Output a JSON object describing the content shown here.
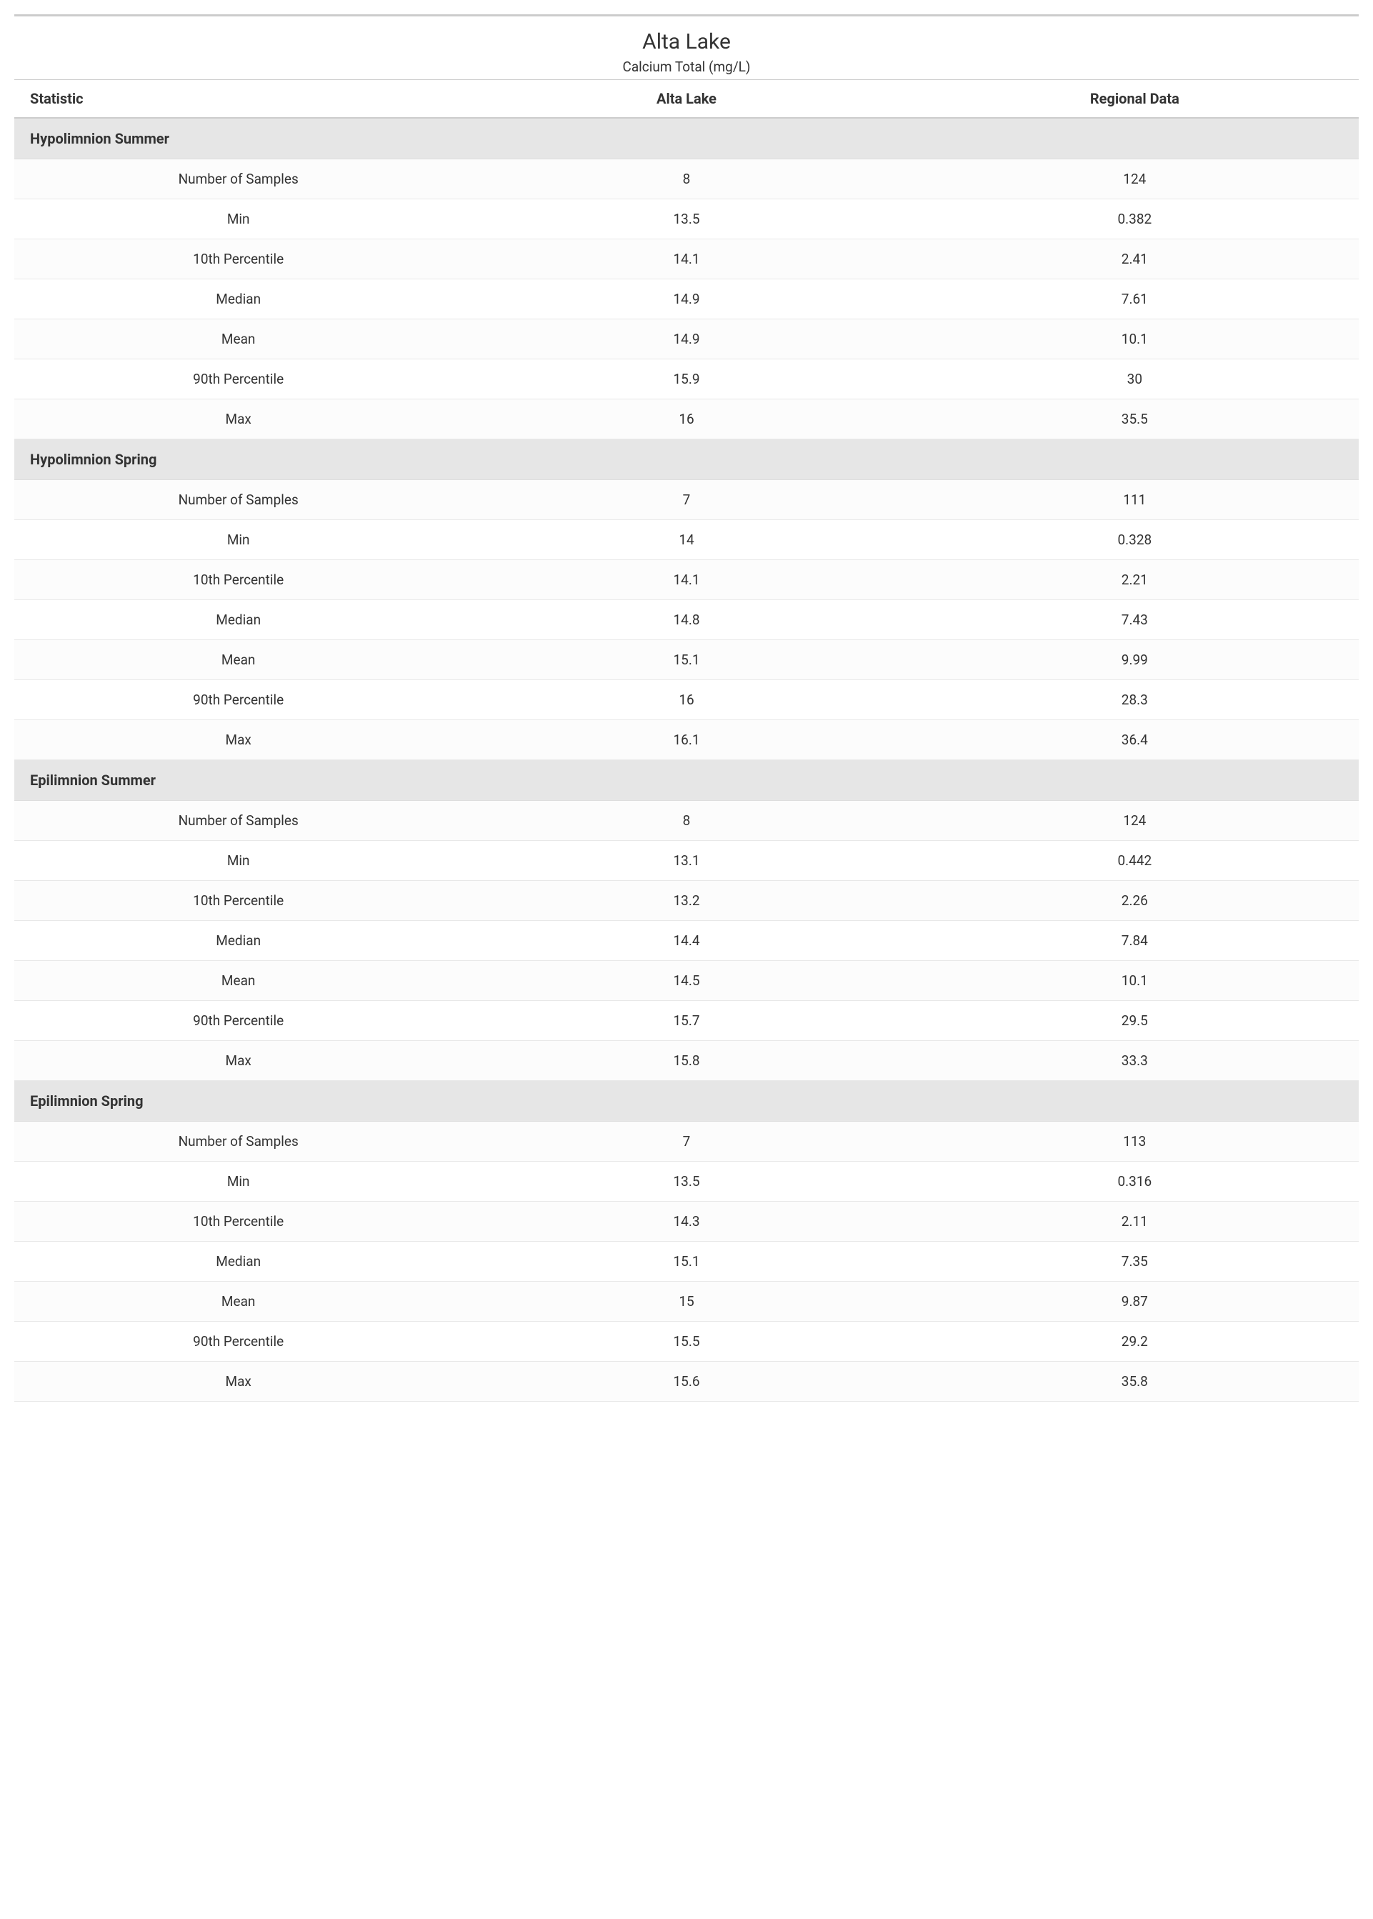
{
  "header": {
    "title": "Alta Lake",
    "subtitle": "Calcium Total (mg/L)"
  },
  "columns": [
    "Statistic",
    "Alta Lake",
    "Regional Data"
  ],
  "sections": [
    {
      "name": "Hypolimnion Summer",
      "rows": [
        {
          "stat": "Number of Samples",
          "alta": "8",
          "regional": "124"
        },
        {
          "stat": "Min",
          "alta": "13.5",
          "regional": "0.382"
        },
        {
          "stat": "10th Percentile",
          "alta": "14.1",
          "regional": "2.41"
        },
        {
          "stat": "Median",
          "alta": "14.9",
          "regional": "7.61"
        },
        {
          "stat": "Mean",
          "alta": "14.9",
          "regional": "10.1"
        },
        {
          "stat": "90th Percentile",
          "alta": "15.9",
          "regional": "30"
        },
        {
          "stat": "Max",
          "alta": "16",
          "regional": "35.5"
        }
      ]
    },
    {
      "name": "Hypolimnion Spring",
      "rows": [
        {
          "stat": "Number of Samples",
          "alta": "7",
          "regional": "111"
        },
        {
          "stat": "Min",
          "alta": "14",
          "regional": "0.328"
        },
        {
          "stat": "10th Percentile",
          "alta": "14.1",
          "regional": "2.21"
        },
        {
          "stat": "Median",
          "alta": "14.8",
          "regional": "7.43"
        },
        {
          "stat": "Mean",
          "alta": "15.1",
          "regional": "9.99"
        },
        {
          "stat": "90th Percentile",
          "alta": "16",
          "regional": "28.3"
        },
        {
          "stat": "Max",
          "alta": "16.1",
          "regional": "36.4"
        }
      ]
    },
    {
      "name": "Epilimnion Summer",
      "rows": [
        {
          "stat": "Number of Samples",
          "alta": "8",
          "regional": "124"
        },
        {
          "stat": "Min",
          "alta": "13.1",
          "regional": "0.442"
        },
        {
          "stat": "10th Percentile",
          "alta": "13.2",
          "regional": "2.26"
        },
        {
          "stat": "Median",
          "alta": "14.4",
          "regional": "7.84"
        },
        {
          "stat": "Mean",
          "alta": "14.5",
          "regional": "10.1"
        },
        {
          "stat": "90th Percentile",
          "alta": "15.7",
          "regional": "29.5"
        },
        {
          "stat": "Max",
          "alta": "15.8",
          "regional": "33.3"
        }
      ]
    },
    {
      "name": "Epilimnion Spring",
      "rows": [
        {
          "stat": "Number of Samples",
          "alta": "7",
          "regional": "113"
        },
        {
          "stat": "Min",
          "alta": "13.5",
          "regional": "0.316"
        },
        {
          "stat": "10th Percentile",
          "alta": "14.3",
          "regional": "2.11"
        },
        {
          "stat": "Median",
          "alta": "15.1",
          "regional": "7.35"
        },
        {
          "stat": "Mean",
          "alta": "15",
          "regional": "9.87"
        },
        {
          "stat": "90th Percentile",
          "alta": "15.5",
          "regional": "29.2"
        },
        {
          "stat": "Max",
          "alta": "15.6",
          "regional": "35.8"
        }
      ]
    }
  ],
  "styling": {
    "background_color": "#ffffff",
    "text_color": "#333333",
    "section_header_bg": "#e6e6e6",
    "border_color": "#cccccc",
    "row_border_color": "#e8e8e8",
    "top_border_color": "#cccccc",
    "title_fontsize": 30,
    "subtitle_fontsize": 19,
    "header_fontsize": 20,
    "cell_fontsize": 19,
    "font_family": "Segoe UI"
  }
}
